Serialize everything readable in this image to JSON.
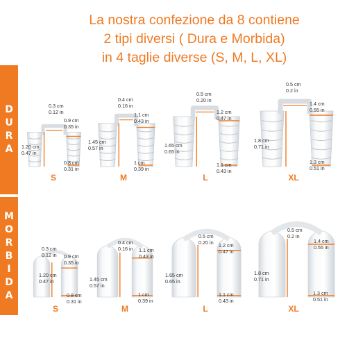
{
  "header": {
    "line1": "La nostra confezione da 8 contiene",
    "line2": "2 tipi diversi ( Dura e Morbida)",
    "line3": "in 4 taglie diverse (S, M, L, XL)"
  },
  "tabs": {
    "dura": [
      "D",
      "U",
      "R",
      "A"
    ],
    "morbida": [
      "M",
      "O",
      "R",
      "B",
      "I",
      "D",
      "A"
    ]
  },
  "colors": {
    "accent": "#f07a22",
    "text": "#333333"
  },
  "dura": [
    {
      "size": "S",
      "top": [
        "0.3 cm",
        "0.12 in"
      ],
      "side": [
        "1.20 cm",
        "0.47 in"
      ],
      "right": [
        "0.9 cm",
        "0.35 in"
      ],
      "bottom": [
        "0.8 cm",
        "0.31 in"
      ]
    },
    {
      "size": "M",
      "top": [
        "0.4 cm",
        "0.16 in"
      ],
      "side": [
        "1.45 cm",
        "0.57 in"
      ],
      "right": [
        "1.1 cm",
        "0.43 in"
      ],
      "bottom": [
        "1 cm",
        "0.39 in"
      ]
    },
    {
      "size": "L",
      "top": [
        "0.5 cm",
        "0.20 in"
      ],
      "side": [
        "1.65 cm",
        "0.65 in"
      ],
      "right": [
        "1.2 cm",
        "0.47 in"
      ],
      "bottom": [
        "1.1 cm",
        "0.43 in"
      ]
    },
    {
      "size": "XL",
      "top": [
        "0.5 cm",
        "0.2 in"
      ],
      "side": [
        "1.8 cm",
        "0.71 in"
      ],
      "right": [
        "1.4 cm",
        "0.55 in"
      ],
      "bottom": [
        "1.3 cm",
        "0.51 in"
      ]
    }
  ],
  "morbida": [
    {
      "size": "S",
      "top": [
        "0.3 cm",
        "0.12 in"
      ],
      "side": [
        "1.20 cm",
        "0.47 in"
      ],
      "right": [
        "0.9 cm",
        "0.35 in"
      ],
      "bottom": [
        "0.8 cm",
        "0.31 in"
      ]
    },
    {
      "size": "M",
      "top": [
        "0.4 cm",
        "0.16 in"
      ],
      "side": [
        "1.45 cm",
        "0.57 in"
      ],
      "right": [
        "1.1 cm",
        "0.43 in"
      ],
      "bottom": [
        "1 cm",
        "0.39 in"
      ]
    },
    {
      "size": "L",
      "top": [
        "0.5 cm",
        "0.20 in"
      ],
      "side": [
        "1.65 cm",
        "0.65 in"
      ],
      "right": [
        "1.2 cm",
        "0.47 in"
      ],
      "bottom": [
        "1.1 cm",
        "0.43 in"
      ]
    },
    {
      "size": "XL",
      "top": [
        "0.5 cm",
        "0.2 in"
      ],
      "side": [
        "1.8 cm",
        "0.71 in"
      ],
      "right": [
        "1.4 cm",
        "0.55 in"
      ],
      "bottom": [
        "1.3 cm",
        "0.51 in"
      ]
    }
  ]
}
